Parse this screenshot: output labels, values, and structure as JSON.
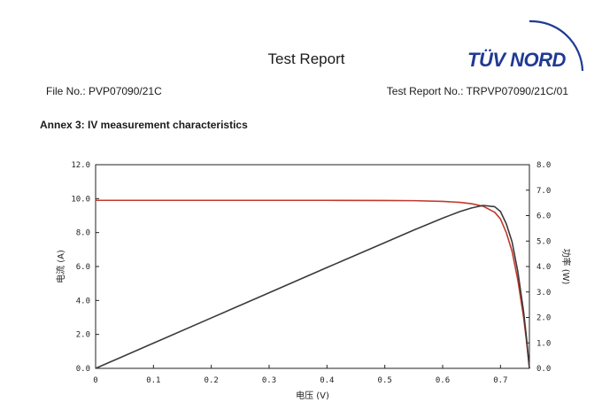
{
  "header": {
    "title": "Test Report",
    "file_no": "File No.: PVP07090/21C",
    "report_no": "Test Report No.: TRPVP07090/21C/01",
    "logo_text": "TÜV NORD",
    "logo_color": "#1f3a93"
  },
  "section": {
    "annex_title": "Annex 3: IV measurement characteristics"
  },
  "chart_data": {
    "type": "line",
    "xlabel": "电压 (V)",
    "ylabel": "电流 (A)",
    "y2label": "功率 (W)",
    "xlim": [
      0,
      0.75
    ],
    "ylim": [
      0,
      12
    ],
    "y2lim": [
      0,
      8
    ],
    "x_ticks": [
      "0",
      "0.1",
      "0.2",
      "0.3",
      "0.4",
      "0.5",
      "0.6",
      "0.7"
    ],
    "y_ticks": [
      "0.0",
      "2.0",
      "4.0",
      "6.0",
      "8.0",
      "10.0",
      "12.0"
    ],
    "y2_ticks": [
      "0.0",
      "1.0",
      "2.0",
      "3.0",
      "4.0",
      "5.0",
      "6.0",
      "7.0",
      "8.0"
    ],
    "grid": false,
    "series": [
      {
        "axis": "left",
        "color": "#c0392b",
        "x": [
          0,
          0.1,
          0.2,
          0.3,
          0.4,
          0.5,
          0.55,
          0.6,
          0.63,
          0.65,
          0.67,
          0.69,
          0.7,
          0.71,
          0.72,
          0.73,
          0.74,
          0.745,
          0.75
        ],
        "y": [
          9.9,
          9.9,
          9.9,
          9.9,
          9.9,
          9.89,
          9.88,
          9.84,
          9.78,
          9.7,
          9.55,
          9.2,
          8.8,
          8.0,
          6.9,
          5.2,
          3.0,
          1.6,
          0
        ]
      },
      {
        "axis": "right",
        "color": "#3a3a3a",
        "x": [
          0,
          0.1,
          0.2,
          0.3,
          0.4,
          0.5,
          0.55,
          0.6,
          0.63,
          0.65,
          0.67,
          0.69,
          0.7,
          0.71,
          0.72,
          0.73,
          0.74,
          0.745,
          0.75
        ],
        "y": [
          0,
          0.99,
          1.98,
          2.97,
          3.96,
          4.94,
          5.43,
          5.9,
          6.16,
          6.3,
          6.4,
          6.35,
          6.16,
          5.68,
          4.97,
          3.8,
          2.22,
          1.19,
          0
        ]
      }
    ]
  }
}
